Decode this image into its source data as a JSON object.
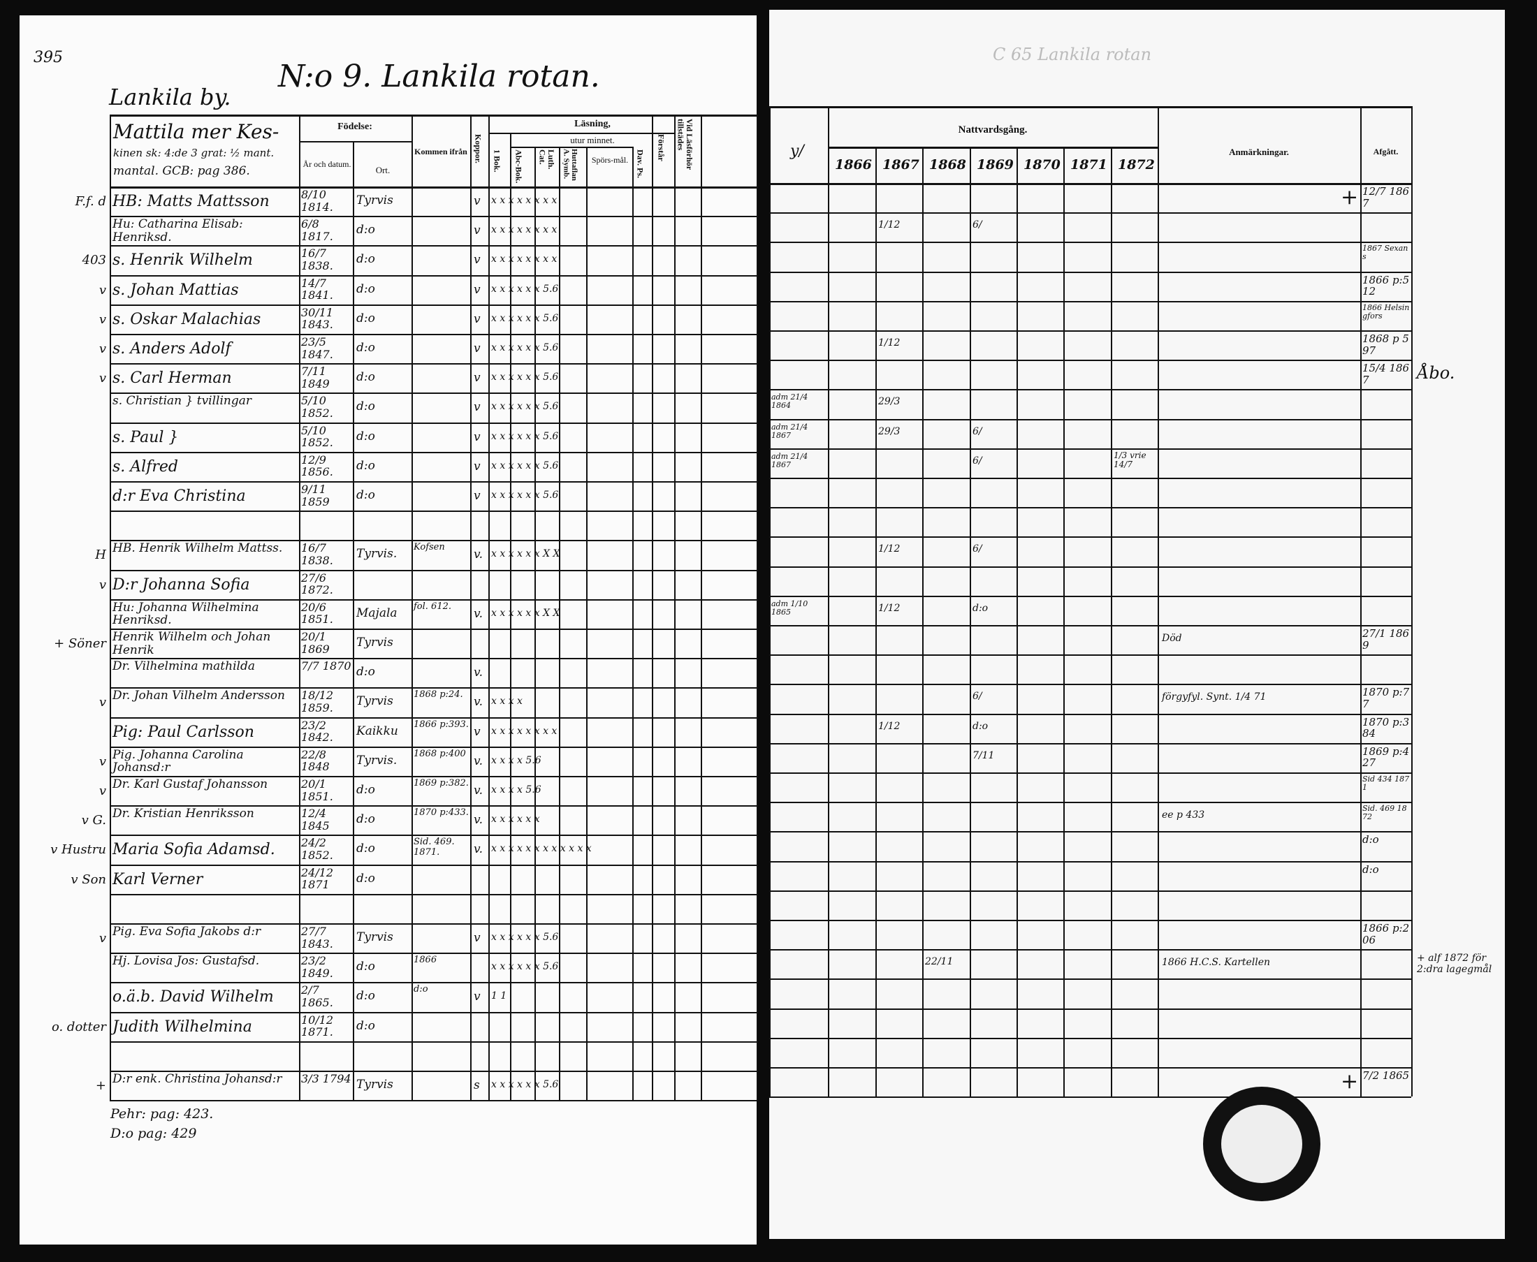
{
  "left_page": {
    "page_number": "395",
    "title": "N:o 9. Lankila rotan.",
    "village": "Lankila by.",
    "homestead_heading": [
      "Mattila mer Kes-",
      "kinen sk: 4:de 3 grat: ½ mant.",
      "mantal. GCB: pag 386."
    ],
    "headers": {
      "birth": "Födelse:",
      "year_date": "År och datum.",
      "place": "Ort.",
      "came_from": "Kommen ifrån",
      "smallpox": "Koppor.",
      "reading": "Läsning,",
      "by_heart": "utur minnet.",
      "first_book": "1 Bok.",
      "abc_book": "Abc-Bok.",
      "luth_cat": "Luth. Cat.",
      "hutt": "Huttaflan A. Symb.",
      "questions": "Spörs-mål.",
      "dav_ps": "Dav. Ps.",
      "understanding": "Förstår",
      "exam": "Vid Läsförhör tillstädes"
    },
    "rows": [
      {
        "margin": "F.f. d",
        "name": "HB: Matts Mattsson",
        "date": "8/10 1814.",
        "place": "Tyrvis",
        "from": "",
        "smallpox": "v",
        "reading": "x x  x  x  x x  x x"
      },
      {
        "margin": "",
        "name": "Hu: Catharina Elisab: Henriksd.",
        "date": "6/8 1817.",
        "place": "d:o",
        "from": "",
        "smallpox": "v",
        "reading": "x x  x  x  x x  x x"
      },
      {
        "margin": "403",
        "name": "s. Henrik Wilhelm",
        "date": "16/7 1838.",
        "place": "d:o",
        "from": "",
        "smallpox": "v",
        "reading": "x x  x  x  x x  x x"
      },
      {
        "margin": "v",
        "name": "s. Johan Mattias",
        "date": "14/7 1841.",
        "place": "d:o",
        "from": "",
        "smallpox": "v",
        "reading": "x x  x  x  x x  5.6"
      },
      {
        "margin": "v",
        "name": "s. Oskar Malachias",
        "date": "30/11 1843.",
        "place": "d:o",
        "from": "",
        "smallpox": "v",
        "reading": "x x  x  x  x x  5.6"
      },
      {
        "margin": "v",
        "name": "s. Anders Adolf",
        "date": "23/5 1847.",
        "place": "d:o",
        "from": "",
        "smallpox": "v",
        "reading": "x x  x  x  x x  5.6"
      },
      {
        "margin": "v",
        "name": "s. Carl Herman",
        "date": "7/11 1849",
        "place": "d:o",
        "from": "",
        "smallpox": "v",
        "reading": "x x  x  x  x x  5.6"
      },
      {
        "margin": "",
        "name": "s. Christian } tvillingar",
        "date": "5/10 1852.",
        "place": "d:o",
        "from": "",
        "smallpox": "v",
        "reading": "x x  x  x  x x  5.6"
      },
      {
        "margin": "",
        "name": "s. Paul }",
        "date": "5/10 1852.",
        "place": "d:o",
        "from": "",
        "smallpox": "v",
        "reading": "x x  x  x  x x  5.6"
      },
      {
        "margin": "",
        "name": "s. Alfred",
        "date": "12/9 1856.",
        "place": "d:o",
        "from": "",
        "smallpox": "v",
        "reading": "x x  x  x x x  5.6"
      },
      {
        "margin": "",
        "name": "d:r Eva Christina",
        "date": "9/11 1859",
        "place": "d:o",
        "from": "",
        "smallpox": "v",
        "reading": "x x  x  x  x x  5.6"
      },
      {
        "margin": "",
        "name": "",
        "date": "",
        "place": "",
        "from": "",
        "smallpox": "",
        "reading": ""
      },
      {
        "margin": "H",
        "name": "HB. Henrik Wilhelm Mattss.",
        "date": "16/7 1838.",
        "place": "Tyrvis.",
        "from": "Kofsen",
        "smallpox": "v.",
        "reading": "x x  x  x  x x  X X"
      },
      {
        "margin": "v",
        "name": "D:r Johanna Sofia",
        "date": "27/6 1872.",
        "place": "",
        "from": "",
        "smallpox": "",
        "reading": ""
      },
      {
        "margin": "",
        "name": "Hu: Johanna Wilhelmina Henriksd.",
        "date": "20/6 1851.",
        "place": "Majala",
        "from": "fol. 612.",
        "smallpox": "v.",
        "reading": "x x  x  x  x x  X X"
      },
      {
        "margin": "+ Söner",
        "name": "Henrik Wilhelm och Johan Henrik",
        "date": "20/1 1869",
        "place": "Tyrvis",
        "from": "",
        "smallpox": "",
        "reading": ""
      },
      {
        "margin": "",
        "name": "Dr. Vilhelmina mathilda",
        "date": "7/7 1870",
        "place": "d:o",
        "from": "",
        "smallpox": "v.",
        "reading": ""
      },
      {
        "margin": "v",
        "name": "Dr. Johan Vilhelm Andersson",
        "date": "18/12 1859.",
        "place": "Tyrvis",
        "from": "1868 p:24.",
        "smallpox": "v.",
        "reading": "x  x  x  x"
      },
      {
        "margin": "",
        "name": "Pig: Paul Carlsson",
        "date": "23/2 1842.",
        "place": "Kaikku",
        "from": "1866 p:393.",
        "smallpox": "v",
        "reading": "x x  x  x  x x  x x"
      },
      {
        "margin": "v",
        "name": "Pig. Johanna Carolina Johansd:r",
        "date": "22/8 1848",
        "place": "Tyrvis.",
        "from": "1868 p:400",
        "smallpox": "v.",
        "reading": "x  x  x  x  5.6"
      },
      {
        "margin": "v",
        "name": "Dr. Karl Gustaf Johansson",
        "date": "20/1 1851.",
        "place": "d:o",
        "from": "1869 p:382.",
        "smallpox": "v.",
        "reading": "x  x  x  x  5.6"
      },
      {
        "margin": "v G.",
        "name": "Dr. Kristian Henriksson",
        "date": "12/4 1845",
        "place": "d:o",
        "from": "1870 p:433.",
        "smallpox": "v.",
        "reading": "x  x  x  x  x x"
      },
      {
        "margin": "v Hustru",
        "name": "Maria Sofia Adamsd.",
        "date": "24/2 1852.",
        "place": "d:o",
        "from": "Sid. 469. 1871.",
        "smallpox": "v.",
        "reading": "x x  x x  x x x  x x  x x x"
      },
      {
        "margin": "v Son",
        "name": "Karl Verner",
        "date": "24/12 1871",
        "place": "d:o",
        "from": "",
        "smallpox": "",
        "reading": ""
      },
      {
        "margin": "",
        "name": "",
        "date": "",
        "place": "",
        "from": "",
        "smallpox": "",
        "reading": ""
      },
      {
        "margin": "v",
        "name": "Pig. Eva Sofia Jakobs d:r",
        "date": "27/7 1843.",
        "place": "Tyrvis",
        "from": "",
        "smallpox": "v",
        "reading": "x x  x  x  x x  5.6"
      },
      {
        "margin": "",
        "name": "Hj. Lovisa Jos: Gustafsd.",
        "date": "23/2 1849.",
        "place": "d:o",
        "from": "1866",
        "smallpox": "",
        "reading": "x x  x  x  x x  5.6"
      },
      {
        "margin": "",
        "name": "o.ä.b. David Wilhelm",
        "date": "2/7 1865.",
        "place": "d:o",
        "from": "d:o",
        "smallpox": "v",
        "reading": "1  1"
      },
      {
        "margin": "o. dotter",
        "name": "Judith Wilhelmina",
        "date": "10/12 1871.",
        "place": "d:o",
        "from": "",
        "smallpox": "",
        "reading": ""
      },
      {
        "margin": "",
        "name": "",
        "date": "",
        "place": "",
        "from": "",
        "smallpox": "",
        "reading": ""
      },
      {
        "margin": "+",
        "name": "D:r enk. Christina Johansd:r",
        "date": "3/3 1794",
        "place": "Tyrvis",
        "from": "",
        "smallpox": "s",
        "reading": "x x  x  x  x x  5.6"
      }
    ],
    "footer_notes": [
      "Pehr: pag: 423.",
      "D:o pag: 429"
    ]
  },
  "right_page": {
    "faded_header": "C 65 Lankila rotan",
    "headers": {
      "communion": "Nattvardsgång.",
      "remarks": "Anmärkningar.",
      "departed": "Afgått.",
      "years": [
        "1866",
        "1867",
        "1868",
        "1869",
        "1870",
        "1871",
        "1872"
      ],
      "marks_col": "y/"
    },
    "rows": [
      {
        "pre": "",
        "y": [
          "",
          "",
          "",
          "",
          "",
          "",
          ""
        ],
        "remark": "",
        "departed": "12/7 1867",
        "cross": "+"
      },
      {
        "pre": "",
        "y": [
          "",
          "1/12",
          "",
          "6/",
          "",
          "",
          ""
        ],
        "remark": "",
        "departed": "",
        "cross": ""
      },
      {
        "pre": "",
        "y": [
          "",
          "",
          "",
          "",
          "",
          "",
          ""
        ],
        "remark": "",
        "departed": "1867 Sexans",
        "cross": ""
      },
      {
        "pre": "",
        "y": [
          "",
          "",
          "",
          "",
          "",
          "",
          ""
        ],
        "remark": "",
        "departed": "1866 p:512",
        "cross": ""
      },
      {
        "pre": "",
        "y": [
          "",
          "",
          "",
          "",
          "",
          "",
          ""
        ],
        "remark": "",
        "departed": "1866 Helsingfors",
        "cross": ""
      },
      {
        "pre": "",
        "y": [
          "",
          "1/12",
          "",
          "",
          "",
          "",
          ""
        ],
        "remark": "",
        "departed": "1868 p 597",
        "cross": ""
      },
      {
        "pre": "",
        "y": [
          "",
          "",
          "",
          "",
          "",
          "",
          ""
        ],
        "remark": "",
        "departed": "15/4 1867",
        "cross": "",
        "outside": "Åbo."
      },
      {
        "pre": "adm 21/4 1864",
        "y": [
          "",
          "29/3",
          "",
          "",
          "",
          "",
          ""
        ],
        "remark": "",
        "departed": "",
        "cross": ""
      },
      {
        "pre": "adm 21/4 1867",
        "y": [
          "",
          "29/3",
          "",
          "6/",
          "",
          "",
          ""
        ],
        "remark": "",
        "departed": "",
        "cross": ""
      },
      {
        "pre": "adm 21/4 1867",
        "y": [
          "",
          "",
          "",
          "6/",
          "",
          "",
          "1/3 vrie 14/7"
        ],
        "remark": "",
        "departed": "",
        "cross": ""
      },
      {
        "pre": "",
        "y": [
          "",
          "",
          "",
          "",
          "",
          "",
          ""
        ],
        "remark": "",
        "departed": "",
        "cross": ""
      },
      {
        "pre": "",
        "y": [
          "",
          "",
          "",
          "",
          "",
          "",
          ""
        ],
        "remark": "",
        "departed": "",
        "cross": ""
      },
      {
        "pre": "",
        "y": [
          "",
          "1/12",
          "",
          "6/",
          "",
          "",
          ""
        ],
        "remark": "",
        "departed": "",
        "cross": ""
      },
      {
        "pre": "",
        "y": [
          "",
          "",
          "",
          "",
          "",
          "",
          ""
        ],
        "remark": "",
        "departed": "",
        "cross": ""
      },
      {
        "pre": "adm 1/10 1865",
        "y": [
          "",
          "1/12",
          "",
          "d:o",
          "",
          "",
          ""
        ],
        "remark": "",
        "departed": "",
        "cross": ""
      },
      {
        "pre": "",
        "y": [
          "",
          "",
          "",
          "",
          "",
          "",
          ""
        ],
        "remark": "Död",
        "departed": "27/1 1869",
        "cross": ""
      },
      {
        "pre": "",
        "y": [
          "",
          "",
          "",
          "",
          "",
          "",
          ""
        ],
        "remark": "",
        "departed": "",
        "cross": ""
      },
      {
        "pre": "",
        "y": [
          "",
          "",
          "",
          "6/",
          "",
          "",
          ""
        ],
        "remark": "förgyfyl. Synt. 1/4 71",
        "departed": "1870 p:77",
        "cross": ""
      },
      {
        "pre": "",
        "y": [
          "",
          "1/12",
          "",
          "d:o",
          "",
          "",
          ""
        ],
        "remark": "",
        "departed": "1870 p:384",
        "cross": ""
      },
      {
        "pre": "",
        "y": [
          "",
          "",
          "",
          "7/11",
          "",
          "",
          ""
        ],
        "remark": "",
        "departed": "1869 p:427",
        "cross": ""
      },
      {
        "pre": "",
        "y": [
          "",
          "",
          "",
          "",
          "",
          "",
          ""
        ],
        "remark": "",
        "departed": "Sid 434 1871",
        "cross": ""
      },
      {
        "pre": "",
        "y": [
          "",
          "",
          "",
          "",
          "",
          "",
          ""
        ],
        "remark": "ee p 433",
        "departed": "Sid. 469 1872",
        "cross": ""
      },
      {
        "pre": "",
        "y": [
          "",
          "",
          "",
          "",
          "",
          "",
          ""
        ],
        "remark": "",
        "departed": "d:o",
        "cross": ""
      },
      {
        "pre": "",
        "y": [
          "",
          "",
          "",
          "",
          "",
          "",
          ""
        ],
        "remark": "",
        "departed": "d:o",
        "cross": ""
      },
      {
        "pre": "",
        "y": [
          "",
          "",
          "",
          "",
          "",
          "",
          ""
        ],
        "remark": "",
        "departed": "",
        "cross": ""
      },
      {
        "pre": "",
        "y": [
          "",
          "",
          "",
          "",
          "",
          "",
          ""
        ],
        "remark": "",
        "departed": "1866 p:206",
        "cross": ""
      },
      {
        "pre": "",
        "y": [
          "",
          "",
          "22/11",
          "",
          "",
          "",
          ""
        ],
        "remark": "1866 H.C.S. Kartellen",
        "departed": "",
        "cross": "",
        "outside": "+ alf 1872 för 2:dra lagegmål"
      },
      {
        "pre": "",
        "y": [
          "",
          "",
          "",
          "",
          "",
          "",
          ""
        ],
        "remark": "",
        "departed": "",
        "cross": ""
      },
      {
        "pre": "",
        "y": [
          "",
          "",
          "",
          "",
          "",
          "",
          ""
        ],
        "remark": "",
        "departed": "",
        "cross": ""
      },
      {
        "pre": "",
        "y": [
          "",
          "",
          "",
          "",
          "",
          "",
          ""
        ],
        "remark": "",
        "departed": "",
        "cross": ""
      },
      {
        "pre": "",
        "y": [
          "",
          "",
          "",
          "",
          "",
          "",
          ""
        ],
        "remark": "",
        "departed": "7/2 1865",
        "cross": "+"
      }
    ],
    "library_stamp": "Library stamp"
  }
}
